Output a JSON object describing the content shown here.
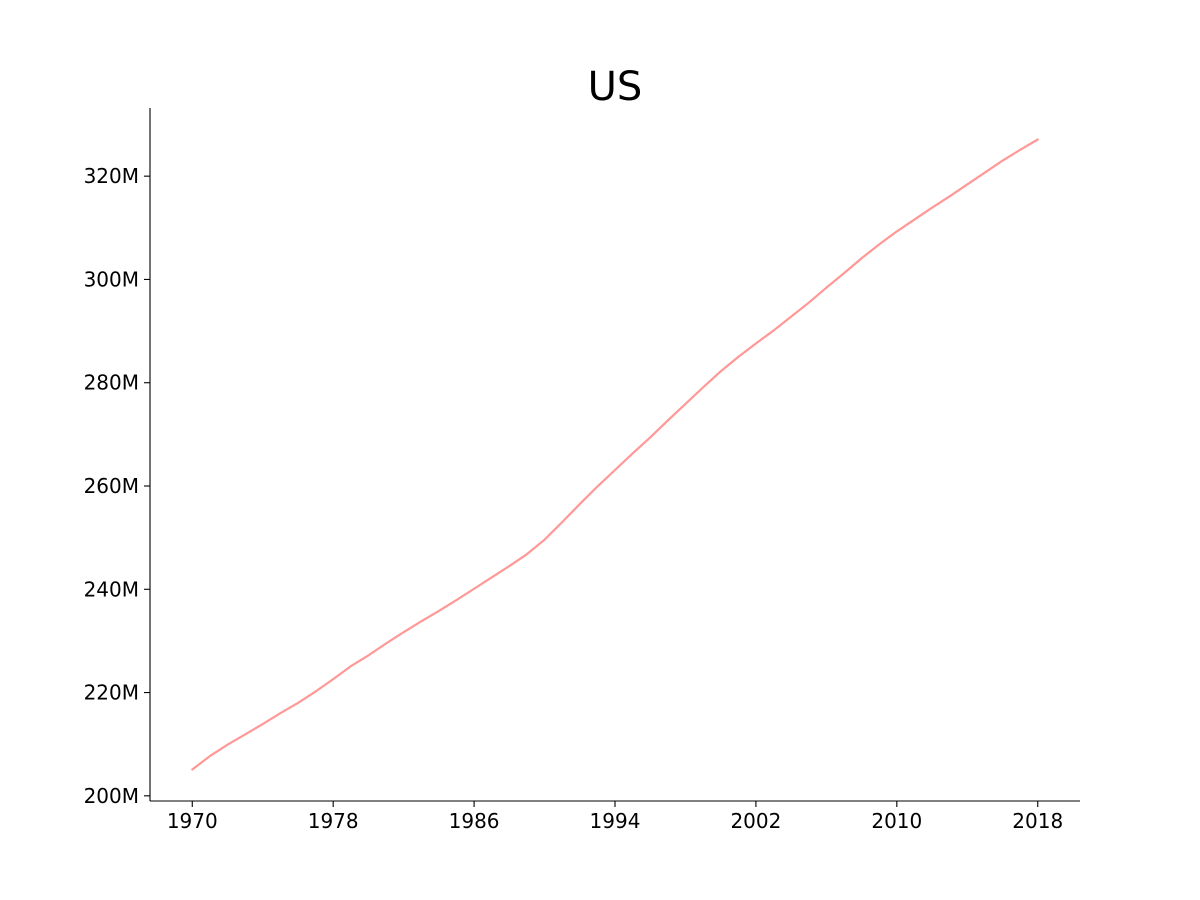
{
  "chart_data": {
    "type": "line",
    "title": "US",
    "xlabel": "",
    "ylabel": "",
    "x_ticks": [
      1970,
      1978,
      1986,
      1994,
      2002,
      2010,
      2018
    ],
    "x_tick_labels": [
      "1970",
      "1978",
      "1986",
      "1994",
      "2002",
      "2010",
      "2018"
    ],
    "y_ticks": [
      200000000,
      220000000,
      240000000,
      260000000,
      280000000,
      300000000,
      320000000
    ],
    "y_tick_labels": [
      "200M",
      "220M",
      "240M",
      "260M",
      "280M",
      "300M",
      "320M"
    ],
    "xlim": [
      1967.6,
      2020.4
    ],
    "ylim": [
      199000000,
      333200000
    ],
    "grid": false,
    "line_color": "#ff9896",
    "series": [
      {
        "x": [
          1970,
          1971,
          1972,
          1973,
          1974,
          1975,
          1976,
          1977,
          1978,
          1979,
          1980,
          1981,
          1982,
          1983,
          1984,
          1985,
          1986,
          1987,
          1988,
          1989,
          1990,
          1991,
          1992,
          1993,
          1994,
          1995,
          1996,
          1997,
          1998,
          1999,
          2000,
          2001,
          2002,
          2003,
          2004,
          2005,
          2006,
          2007,
          2008,
          2009,
          2010,
          2011,
          2012,
          2013,
          2014,
          2015,
          2016,
          2017,
          2018
        ],
        "values": [
          205100000,
          207700000,
          209900000,
          211900000,
          213900000,
          216000000,
          218000000,
          220200000,
          222600000,
          225100000,
          227200000,
          229500000,
          231700000,
          233800000,
          235800000,
          237900000,
          240100000,
          242300000,
          244500000,
          246800000,
          249600000,
          253000000,
          256500000,
          259900000,
          263100000,
          266300000,
          269400000,
          272700000,
          275900000,
          279100000,
          282200000,
          285000000,
          287600000,
          290100000,
          292800000,
          295500000,
          298400000,
          301200000,
          304100000,
          306800000,
          309300000,
          311600000,
          313900000,
          316100000,
          318400000,
          320700000,
          323000000,
          325100000,
          327100000
        ]
      }
    ]
  }
}
